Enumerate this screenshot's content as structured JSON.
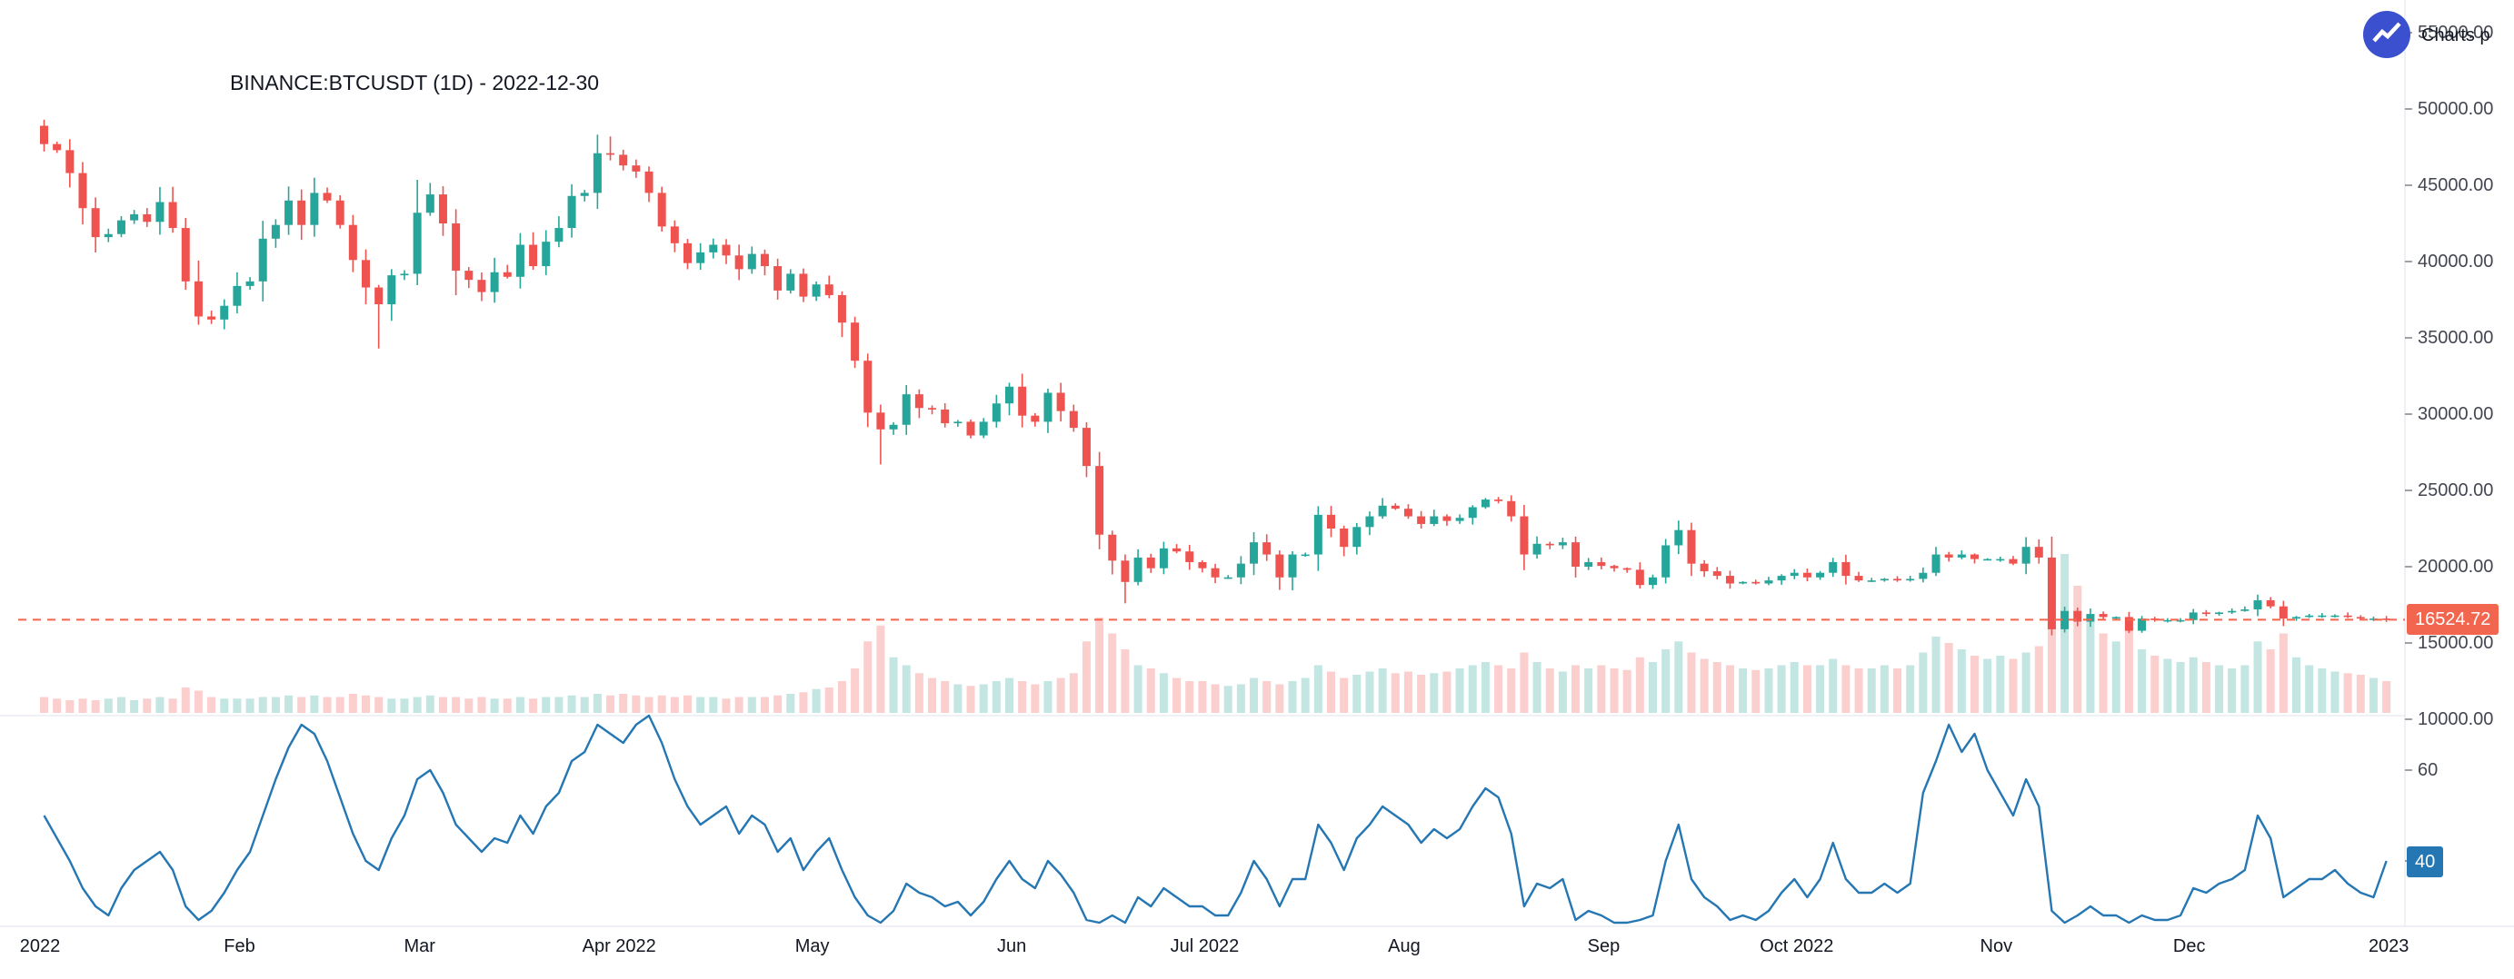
{
  "header": {
    "title": "BINANCE:BTCUSDT (1D) - 2022-12-30",
    "attribution": "Charts p"
  },
  "colors": {
    "up": "#26a69a",
    "down": "#ef5350",
    "vol_up": "rgba(38,166,154,0.28)",
    "vol_down": "rgba(239,83,80,0.28)",
    "price_line": "#f2654e",
    "price_badge_bg": "#f2654e",
    "rsi_line": "#2577b3",
    "rsi_badge_bg": "#2577b3",
    "logo_bg": "#3b50ce",
    "axis_text": "#434651",
    "separator": "#e0e3eb",
    "tick_dash": "#787b86"
  },
  "chart_data": {
    "type": "candlestick",
    "title": "BINANCE:BTCUSDT (1D) - 2022-12-30",
    "symbol": "BINANCE:BTCUSDT",
    "interval": "1D",
    "as_of_date": "2022-12-30",
    "start_date": "2022-01-01",
    "point_interval_days": 2,
    "last_price": 16524.72,
    "last_price_label": "16524.72",
    "rsi_last": 40,
    "rsi_last_label": "40",
    "price_axis_ticks": [
      "55000.00",
      "50000.00",
      "45000.00",
      "40000.00",
      "35000.00",
      "30000.00",
      "25000.00",
      "20000.00",
      "15000.00",
      "10000.00"
    ],
    "rsi_axis_ticks": [
      "60",
      "40"
    ],
    "x_labels": [
      {
        "label": "2022",
        "day": 0
      },
      {
        "label": "Feb",
        "day": 31
      },
      {
        "label": "Mar",
        "day": 59
      },
      {
        "label": "Apr 2022",
        "day": 90
      },
      {
        "label": "May",
        "day": 120
      },
      {
        "label": "Jun",
        "day": 151
      },
      {
        "label": "Jul 2022",
        "day": 181
      },
      {
        "label": "Aug",
        "day": 212
      },
      {
        "label": "Sep",
        "day": 243
      },
      {
        "label": "Oct 2022",
        "day": 273
      },
      {
        "label": "Nov",
        "day": 304
      },
      {
        "label": "Dec",
        "day": 334
      },
      {
        "label": "2023",
        "day": 365
      }
    ],
    "first_open": 48900,
    "high_overrides": {
      "0": 49300,
      "44": 48200
    },
    "low_overrides": {
      "26": 34300,
      "65": 26700,
      "84": 17600,
      "156": 15500
    },
    "series": {
      "close": [
        47700,
        47300,
        45800,
        43500,
        41600,
        41800,
        42700,
        43100,
        42600,
        43900,
        42200,
        38700,
        36400,
        36200,
        37100,
        38400,
        38700,
        41500,
        42400,
        44000,
        42400,
        44500,
        44000,
        42400,
        40100,
        38300,
        37200,
        39100,
        39200,
        43200,
        44400,
        42500,
        39400,
        38800,
        38000,
        39300,
        39000,
        41100,
        39700,
        41300,
        42200,
        44300,
        44500,
        47100,
        47000,
        46300,
        45900,
        44500,
        42300,
        41200,
        39900,
        40600,
        41100,
        40400,
        39500,
        40500,
        39700,
        38100,
        39200,
        37700,
        38500,
        37800,
        36000,
        33500,
        30100,
        29000,
        29300,
        31300,
        30400,
        30300,
        29400,
        29500,
        28600,
        29500,
        30700,
        31800,
        29900,
        29500,
        31400,
        30200,
        29100,
        26600,
        22100,
        20400,
        19000,
        20600,
        19900,
        21200,
        21000,
        20300,
        19900,
        19300,
        19300,
        20200,
        21600,
        20800,
        19300,
        20800,
        20800,
        23400,
        22500,
        21300,
        22600,
        23300,
        24000,
        23800,
        23300,
        22800,
        23300,
        23000,
        23200,
        23900,
        24400,
        24300,
        23300,
        20800,
        21500,
        21400,
        21600,
        20000,
        20300,
        20050,
        19900,
        19800,
        18800,
        19300,
        21400,
        22400,
        20200,
        19700,
        19400,
        18900,
        19000,
        18900,
        19100,
        19400,
        19600,
        19300,
        19600,
        20300,
        19400,
        19100,
        19100,
        19200,
        19100,
        19200,
        19600,
        20800,
        20600,
        20800,
        20500,
        20500,
        20500,
        20200,
        21300,
        20600,
        15900,
        17100,
        16400,
        16900,
        16700,
        16700,
        15800,
        16600,
        16500,
        16500,
        16500,
        17000,
        16900,
        17000,
        17100,
        17200,
        17800,
        17400,
        16600,
        16700,
        16800,
        16800,
        16800,
        16700,
        16600,
        16600,
        16525
      ],
      "volume_rel": [
        10,
        9,
        8,
        9,
        8,
        9,
        10,
        8,
        9,
        10,
        9,
        16,
        14,
        10,
        9,
        9,
        9,
        10,
        10,
        11,
        10,
        11,
        10,
        10,
        12,
        11,
        10,
        9,
        9,
        10,
        11,
        10,
        10,
        9,
        10,
        9,
        9,
        10,
        9,
        10,
        10,
        11,
        10,
        12,
        11,
        12,
        11,
        10,
        11,
        10,
        11,
        10,
        10,
        9,
        10,
        10,
        10,
        11,
        12,
        13,
        15,
        16,
        20,
        28,
        45,
        55,
        35,
        30,
        25,
        22,
        20,
        18,
        17,
        18,
        20,
        22,
        20,
        18,
        20,
        22,
        25,
        45,
        60,
        50,
        40,
        30,
        28,
        25,
        22,
        20,
        20,
        18,
        17,
        18,
        22,
        20,
        18,
        20,
        22,
        30,
        26,
        22,
        24,
        26,
        28,
        25,
        26,
        24,
        25,
        26,
        28,
        30,
        32,
        30,
        28,
        38,
        32,
        28,
        26,
        30,
        28,
        30,
        28,
        27,
        35,
        32,
        40,
        45,
        38,
        34,
        32,
        30,
        28,
        27,
        28,
        30,
        32,
        30,
        30,
        34,
        30,
        28,
        28,
        30,
        28,
        30,
        38,
        48,
        44,
        40,
        36,
        34,
        36,
        34,
        38,
        42,
        95,
        100,
        80,
        60,
        50,
        45,
        55,
        40,
        36,
        34,
        32,
        35,
        32,
        30,
        28,
        30,
        45,
        40,
        50,
        35,
        30,
        28,
        26,
        25,
        24,
        22,
        20
      ],
      "rsi": [
        50,
        45,
        40,
        34,
        30,
        28,
        34,
        38,
        40,
        42,
        38,
        30,
        27,
        29,
        33,
        38,
        42,
        50,
        58,
        65,
        70,
        68,
        62,
        54,
        46,
        40,
        38,
        45,
        50,
        58,
        60,
        55,
        48,
        45,
        42,
        45,
        44,
        50,
        46,
        52,
        55,
        62,
        64,
        70,
        68,
        66,
        70,
        72,
        66,
        58,
        52,
        48,
        50,
        52,
        46,
        50,
        48,
        42,
        45,
        38,
        42,
        45,
        38,
        32,
        28,
        26,
        29,
        35,
        33,
        32,
        30,
        31,
        28,
        31,
        36,
        40,
        36,
        34,
        40,
        37,
        33,
        27,
        26,
        28,
        26,
        32,
        30,
        34,
        32,
        30,
        30,
        28,
        28,
        33,
        40,
        36,
        30,
        36,
        36,
        48,
        44,
        38,
        45,
        48,
        52,
        50,
        48,
        44,
        47,
        45,
        47,
        52,
        56,
        54,
        46,
        30,
        35,
        34,
        36,
        27,
        29,
        28,
        26,
        26,
        27,
        28,
        40,
        48,
        36,
        32,
        30,
        27,
        28,
        27,
        29,
        33,
        36,
        32,
        36,
        44,
        36,
        33,
        33,
        35,
        33,
        35,
        55,
        62,
        70,
        64,
        68,
        60,
        55,
        50,
        58,
        52,
        29,
        26,
        28,
        30,
        28,
        28,
        26,
        28,
        27,
        27,
        28,
        34,
        33,
        35,
        36,
        38,
        50,
        45,
        32,
        34,
        36,
        36,
        38,
        35,
        33,
        32,
        40
      ]
    }
  }
}
